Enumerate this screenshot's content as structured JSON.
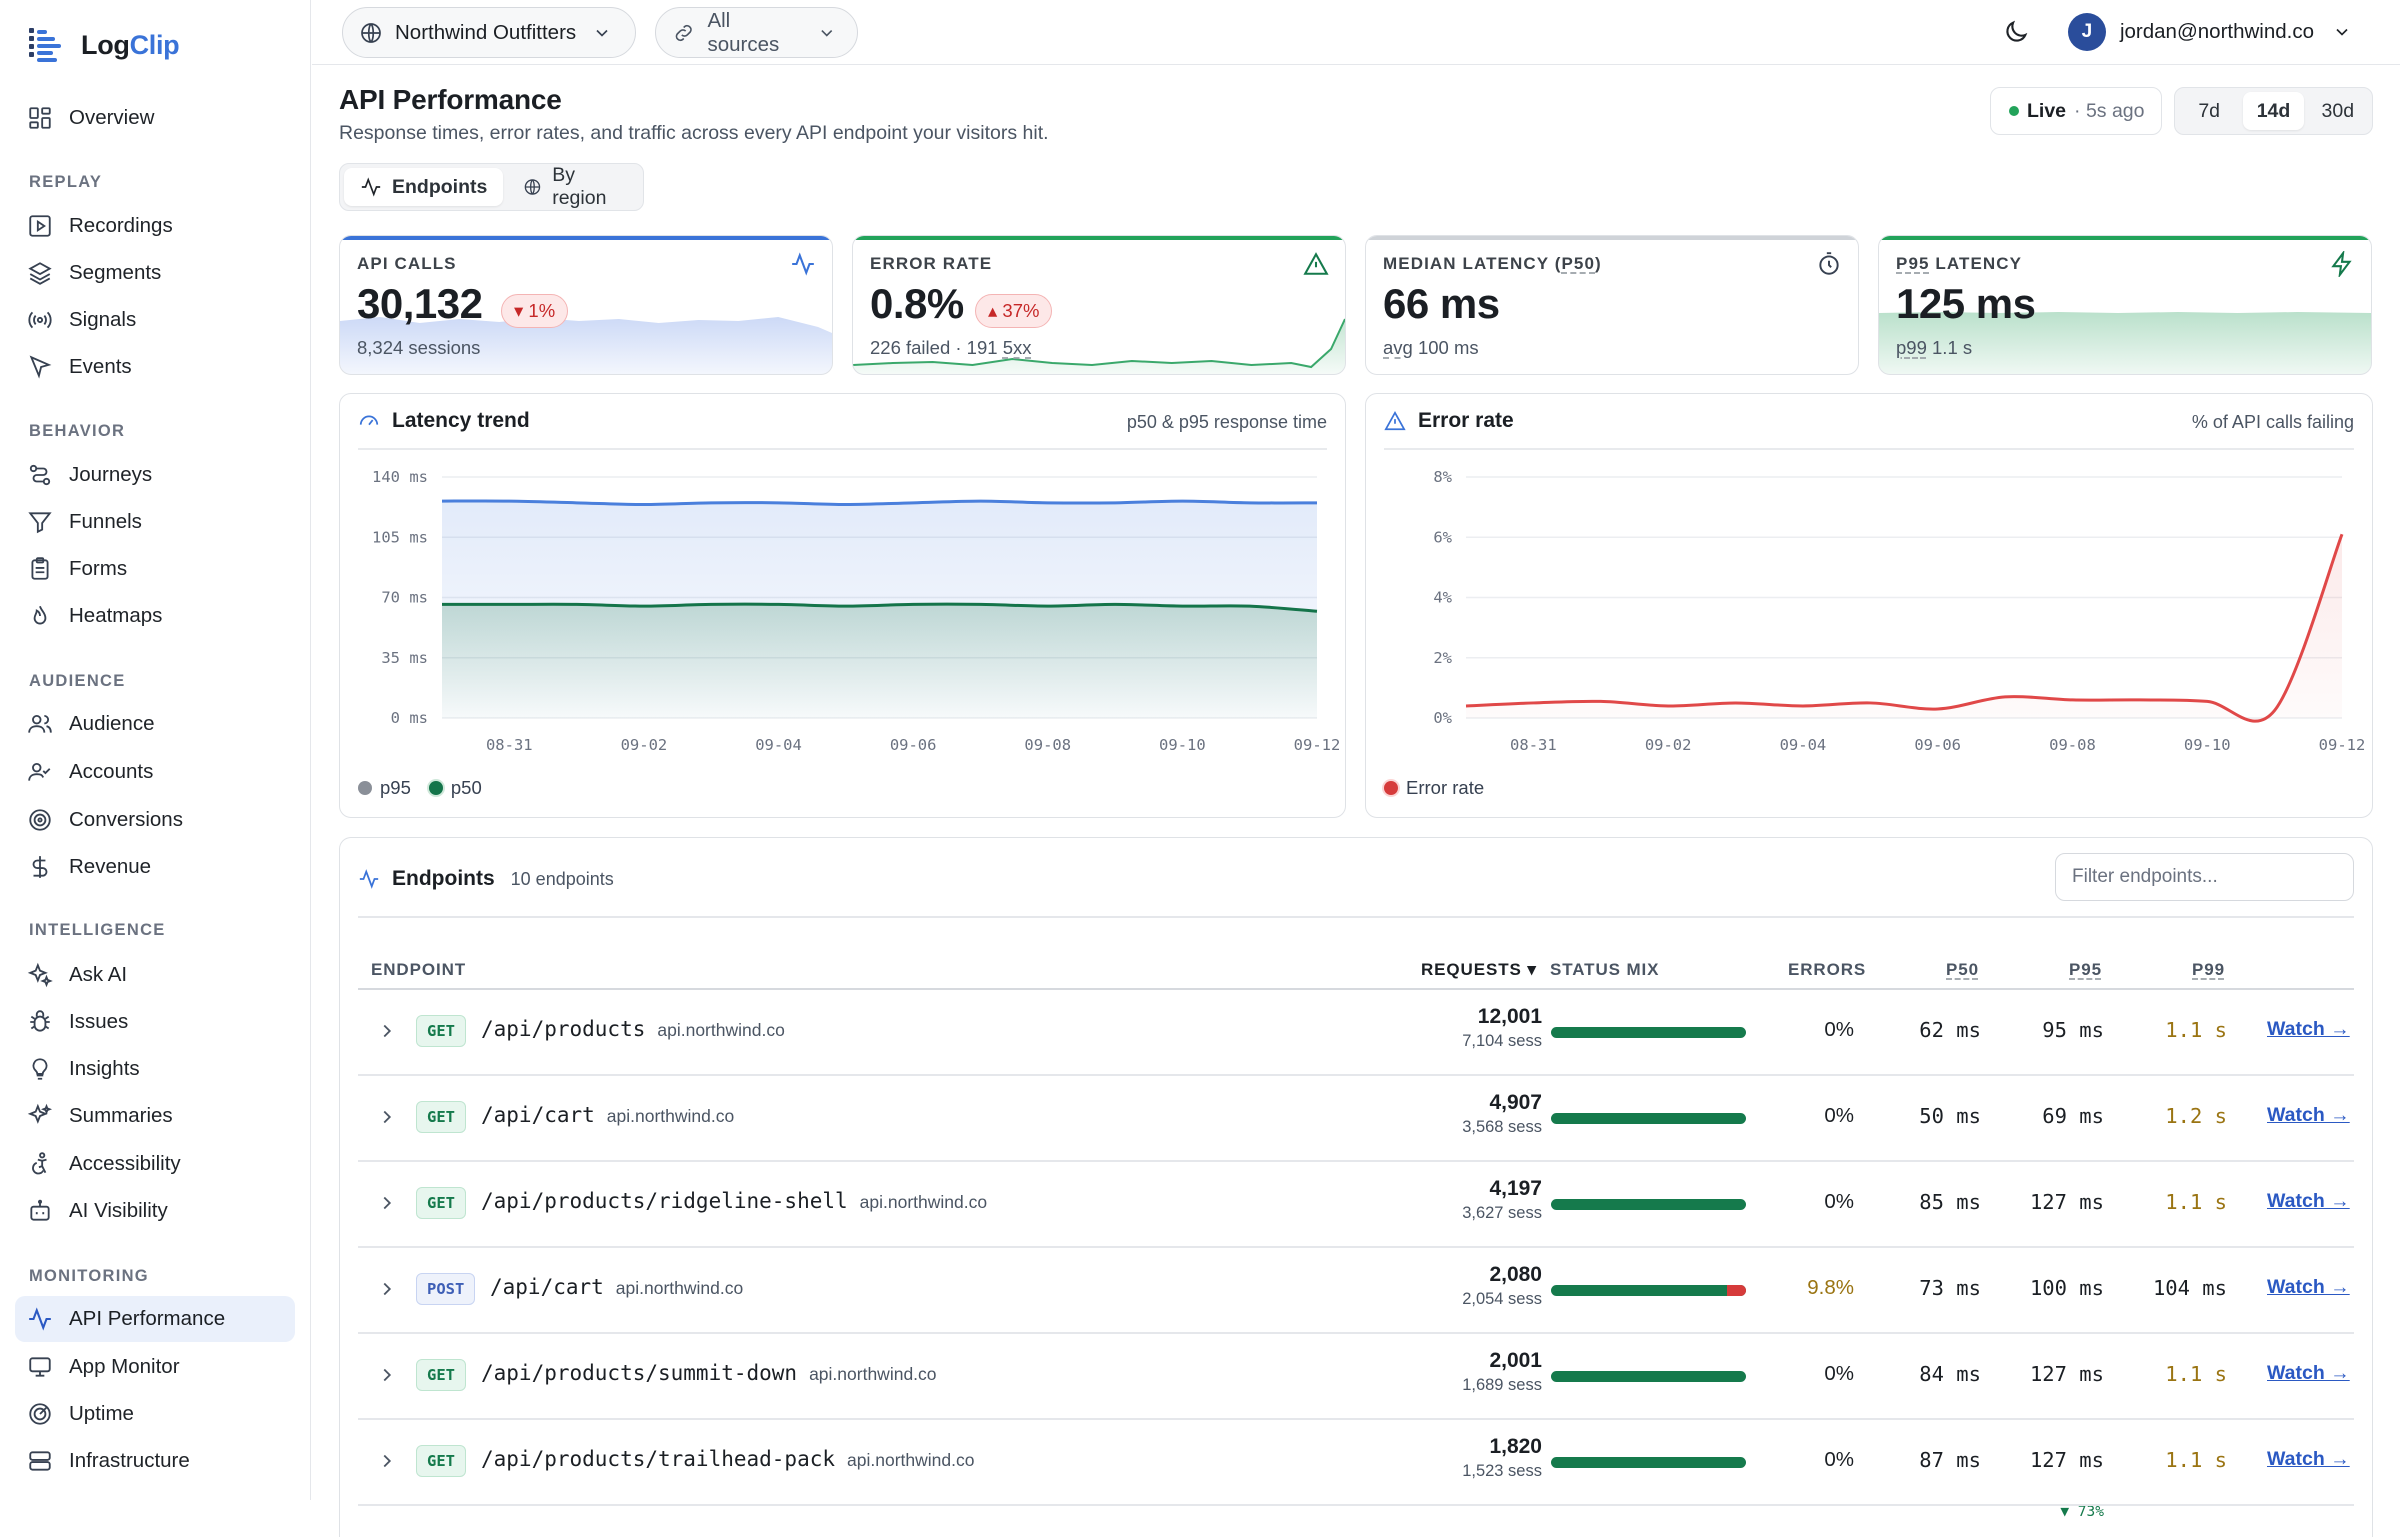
{
  "app": {
    "name_a": "Log",
    "name_b": "Clip"
  },
  "sidebar": {
    "overview": "Overview",
    "sections": {
      "replay": "REPLAY",
      "behavior": "BEHAVIOR",
      "audience": "AUDIENCE",
      "intelligence": "INTELLIGENCE",
      "monitoring": "MONITORING"
    },
    "items": {
      "recordings": "Recordings",
      "segments": "Segments",
      "signals": "Signals",
      "events": "Events",
      "journeys": "Journeys",
      "funnels": "Funnels",
      "forms": "Forms",
      "heatmaps": "Heatmaps",
      "audience": "Audience",
      "accounts": "Accounts",
      "conversions": "Conversions",
      "revenue": "Revenue",
      "ask_ai": "Ask AI",
      "issues": "Issues",
      "insights": "Insights",
      "summaries": "Summaries",
      "accessibility": "Accessibility",
      "ai_visibility": "AI Visibility",
      "api_performance": "API Performance",
      "app_monitor": "App Monitor",
      "uptime": "Uptime",
      "infrastructure": "Infrastructure"
    },
    "active": "api_performance"
  },
  "topbar": {
    "workspace": "Northwind Outfitters",
    "sources": "All sources",
    "user_initial": "J",
    "user_email": "jordan@northwind.co"
  },
  "header": {
    "title": "API Performance",
    "subtitle": "Response times, error rates, and traffic across every API endpoint your visitors hit.",
    "live_label": "Live",
    "live_ago": "· 5s ago",
    "ranges": [
      "7d",
      "14d",
      "30d"
    ],
    "selected_range": "14d",
    "tabs": [
      "Endpoints",
      "By region"
    ]
  },
  "kpis": {
    "api_calls": {
      "label": "API CALLS",
      "value": "30,132",
      "delta": "▾ 1%",
      "sub": "8,324 sessions",
      "accent": "#3a73d8"
    },
    "error_rate": {
      "label": "ERROR RATE",
      "value": "0.8%",
      "delta": "▴ 37%",
      "sub_a": "226 failed · 191 ",
      "sub_b": "5xx",
      "accent": "#22a35a"
    },
    "median_latency": {
      "label_a": "MEDIAN LATENCY (",
      "label_b": "P50",
      "label_c": ")",
      "value": "66 ms",
      "sub_a": "avg",
      "sub_b": " 100 ms"
    },
    "p95_latency": {
      "label_a": "P95",
      "label_b": " LATENCY",
      "value": "125 ms",
      "sub_a": "p99",
      "sub_b": " 1.1 s",
      "accent": "#22a35a"
    }
  },
  "latency_chart": {
    "title": "Latency trend",
    "note": "p50 & p95 response time",
    "legend": [
      "p95",
      "p50"
    ]
  },
  "error_chart": {
    "title": "Error rate",
    "note": "% of API calls failing",
    "legend": [
      "Error rate"
    ]
  },
  "chart_data": [
    {
      "type": "area",
      "title": "Latency trend",
      "x": [
        "08-30",
        "08-31",
        "09-01",
        "09-02",
        "09-03",
        "09-04",
        "09-05",
        "09-06",
        "09-07",
        "09-08",
        "09-09",
        "09-10",
        "09-11",
        "09-12"
      ],
      "x_ticks": [
        "08-31",
        "09-02",
        "09-04",
        "09-06",
        "09-08",
        "09-10",
        "09-12"
      ],
      "y_ticks": [
        "0 ms",
        "35 ms",
        "70 ms",
        "105 ms",
        "140 ms"
      ],
      "ylim": [
        0,
        140
      ],
      "series": [
        {
          "name": "p95",
          "color": "#4a7fdc",
          "values": [
            126,
            126,
            125,
            124,
            125,
            125,
            124,
            125,
            126,
            125,
            125,
            126,
            125,
            125
          ]
        },
        {
          "name": "p50",
          "color": "#14744a",
          "values": [
            66,
            66,
            66,
            65,
            66,
            66,
            65,
            66,
            66,
            65,
            66,
            65,
            65,
            62
          ]
        }
      ]
    },
    {
      "type": "line",
      "title": "Error rate",
      "x": [
        "08-30",
        "08-31",
        "09-01",
        "09-02",
        "09-03",
        "09-04",
        "09-05",
        "09-06",
        "09-07",
        "09-08",
        "09-09",
        "09-10",
        "09-11",
        "09-12"
      ],
      "x_ticks": [
        "08-31",
        "09-02",
        "09-04",
        "09-06",
        "09-08",
        "09-10",
        "09-12"
      ],
      "y_ticks": [
        "0%",
        "2%",
        "4%",
        "6%",
        "8%"
      ],
      "ylim": [
        0,
        8
      ],
      "series": [
        {
          "name": "Error rate",
          "color": "#e04848",
          "values": [
            0.4,
            0.5,
            0.55,
            0.4,
            0.5,
            0.4,
            0.5,
            0.3,
            0.7,
            0.6,
            0.6,
            0.55,
            0.25,
            6.1
          ]
        }
      ]
    }
  ],
  "table": {
    "title": "Endpoints",
    "count": "10 endpoints",
    "filter_placeholder": "Filter endpoints...",
    "headers": {
      "endpoint": "ENDPOINT",
      "requests": "REQUESTS ▾",
      "status": "STATUS MIX",
      "errors": "ERRORS",
      "p50": "P50",
      "p95": "P95",
      "p99": "P99"
    },
    "watch_label": "Watch →",
    "rows": [
      {
        "method": "GET",
        "path": "/api/products",
        "host": "api.northwind.co",
        "requests": "12,001",
        "sessions": "7,104 sess",
        "error_share": 0,
        "errors": "0%",
        "p50": "62 ms",
        "p95": "95 ms",
        "p99": "1.1 s",
        "p95_delta": ""
      },
      {
        "method": "GET",
        "path": "/api/cart",
        "host": "api.northwind.co",
        "requests": "4,907",
        "sessions": "3,568 sess",
        "error_share": 0,
        "errors": "0%",
        "p50": "50 ms",
        "p95": "69 ms",
        "p99": "1.2 s",
        "p95_delta": ""
      },
      {
        "method": "GET",
        "path": "/api/products/ridgeline-shell",
        "host": "api.northwind.co",
        "requests": "4,197",
        "sessions": "3,627 sess",
        "error_share": 0,
        "errors": "0%",
        "p50": "85 ms",
        "p95": "127 ms",
        "p99": "1.1 s",
        "p95_delta": ""
      },
      {
        "method": "POST",
        "path": "/api/cart",
        "host": "api.northwind.co",
        "requests": "2,080",
        "sessions": "2,054 sess",
        "error_share": 0.098,
        "errors": "9.8%",
        "p50": "73 ms",
        "p95": "100 ms",
        "p99": "104 ms",
        "p95_delta": ""
      },
      {
        "method": "GET",
        "path": "/api/products/summit-down",
        "host": "api.northwind.co",
        "requests": "2,001",
        "sessions": "1,689 sess",
        "error_share": 0,
        "errors": "0%",
        "p50": "84 ms",
        "p95": "127 ms",
        "p99": "1.1 s",
        "p95_delta": ""
      },
      {
        "method": "GET",
        "path": "/api/products/trailhead-pack",
        "host": "api.northwind.co",
        "requests": "1,820",
        "sessions": "1,523 sess",
        "error_share": 0,
        "errors": "0%",
        "p50": "87 ms",
        "p95": "127 ms",
        "p99": "1.1 s",
        "p95_delta": "▼ 73%"
      }
    ]
  },
  "colors": {
    "brand": "#3a73d8",
    "success": "#157a4c",
    "danger": "#d63b3b",
    "warning": "#9a7412"
  }
}
